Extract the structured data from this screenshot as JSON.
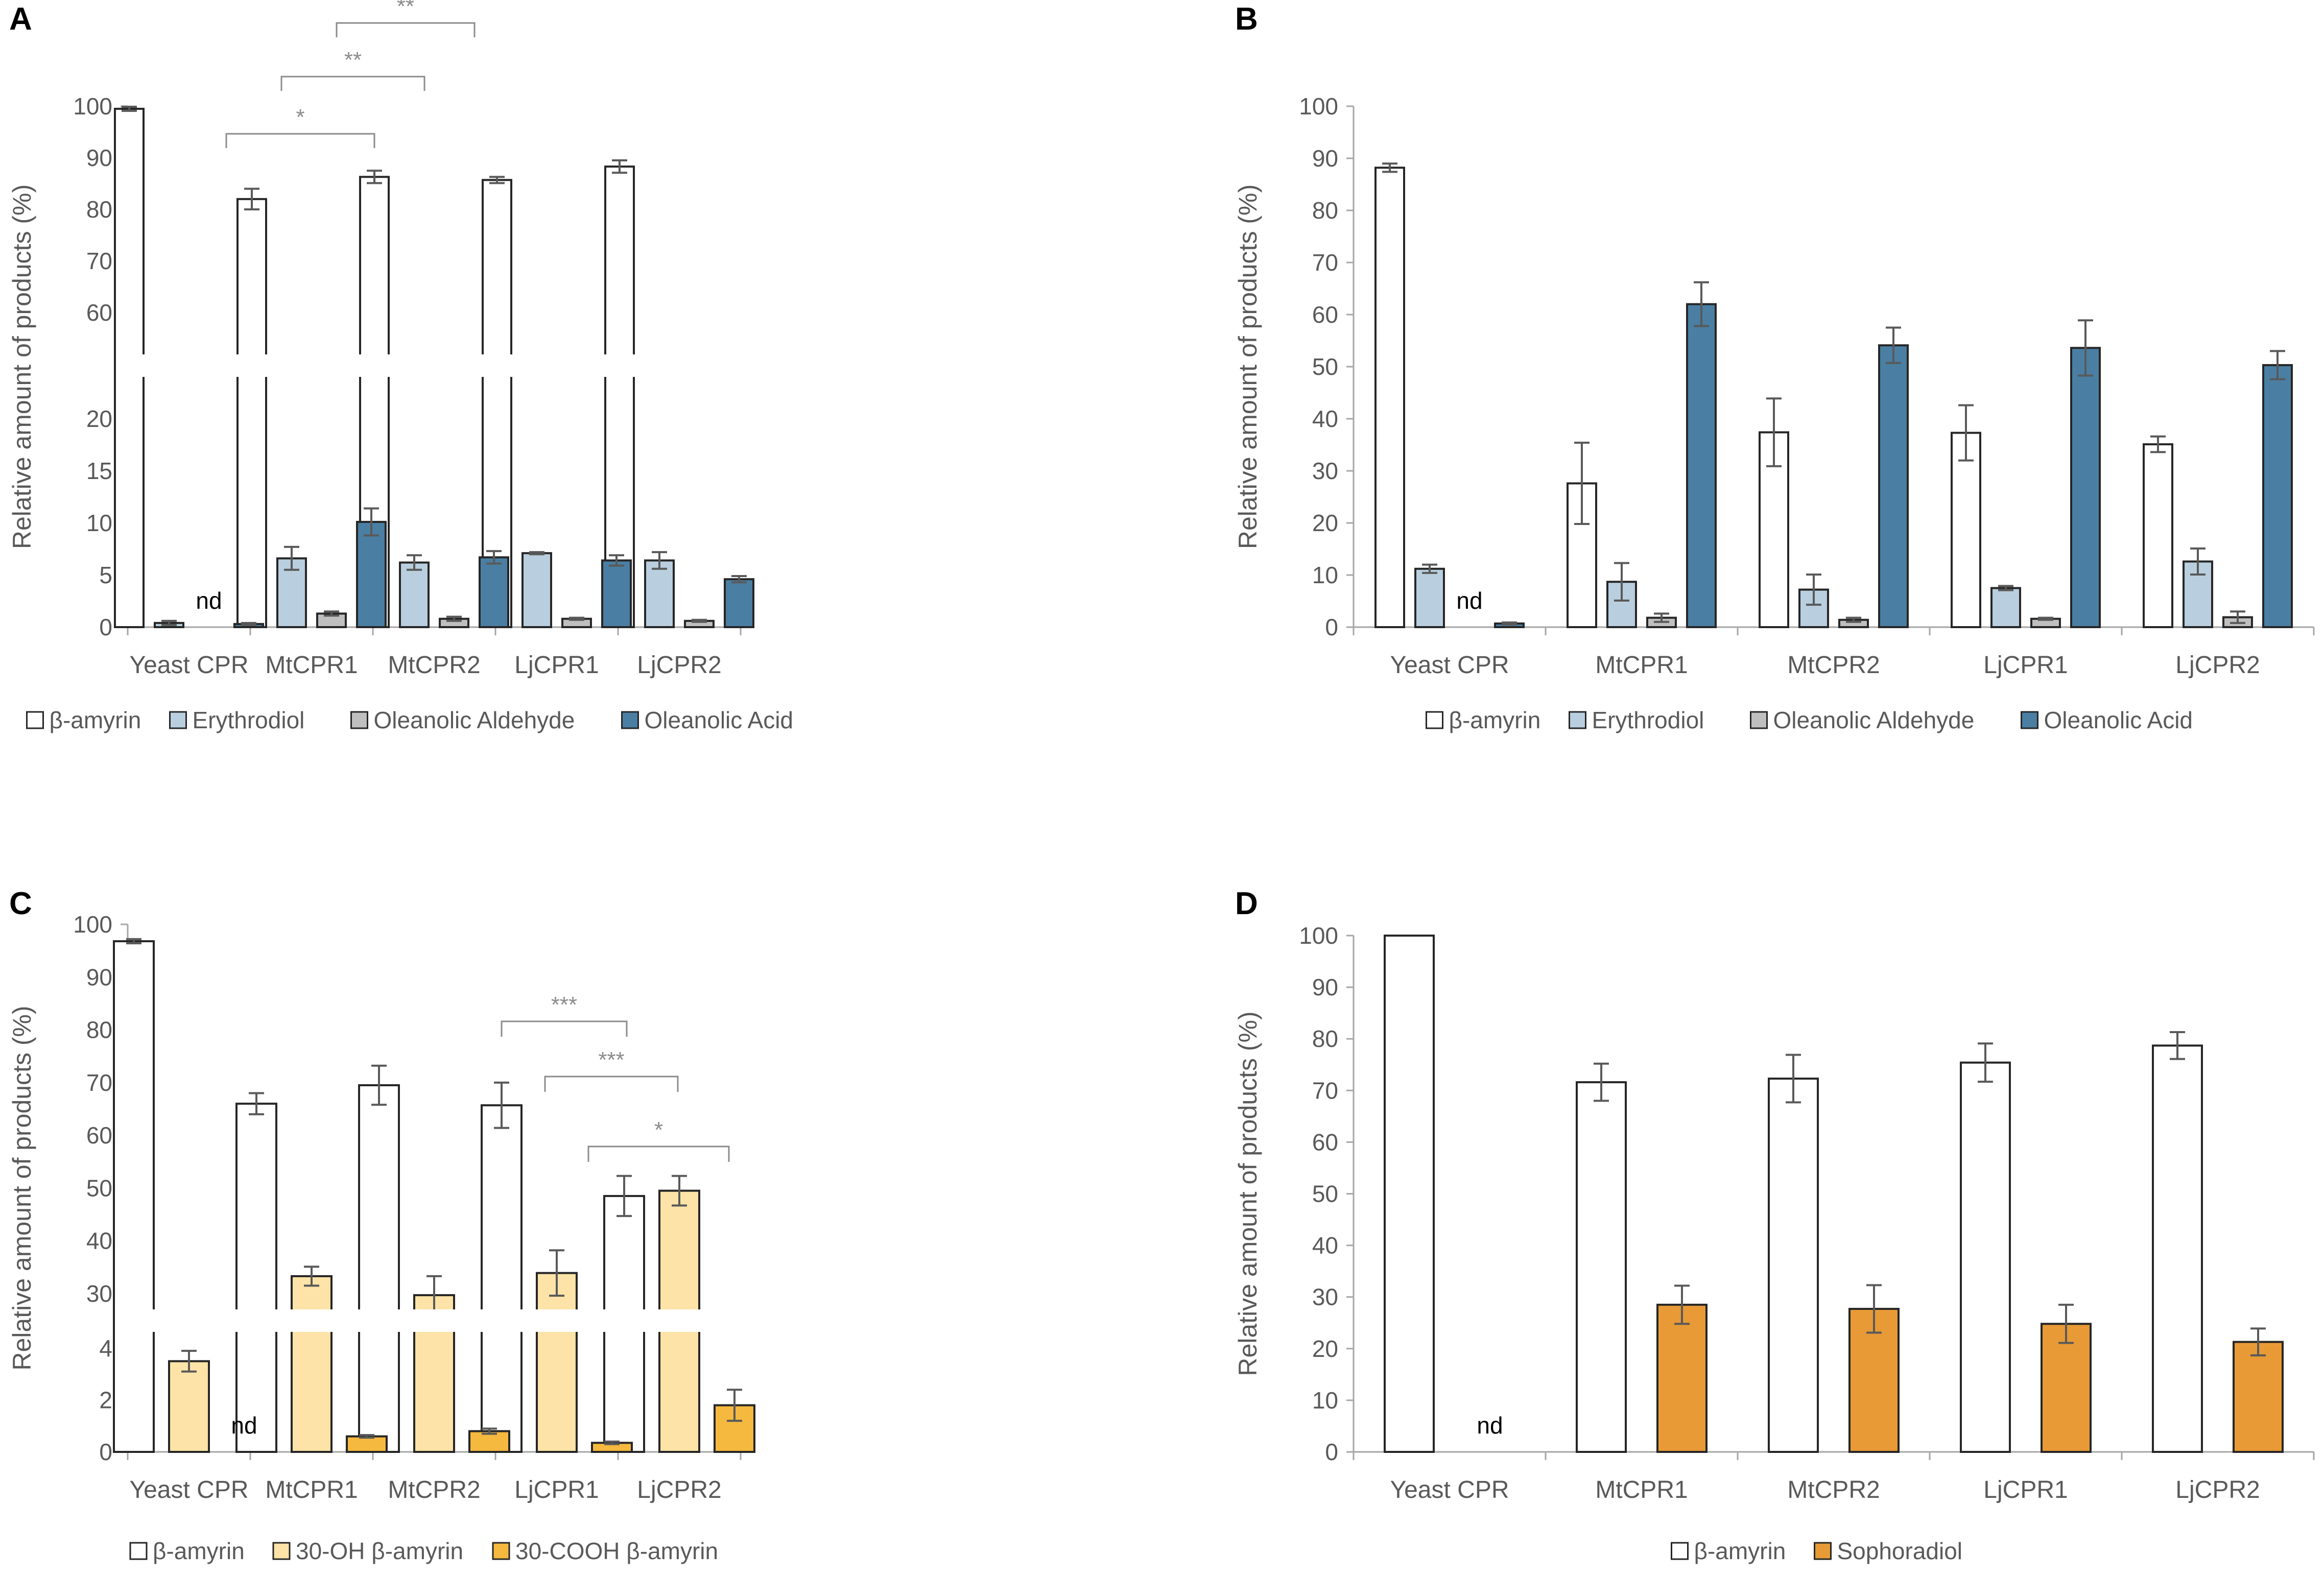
{
  "figure": {
    "colors": {
      "white": "#ffffff",
      "light_blue": "#b9cfdf",
      "gray": "#bfbfbf",
      "steel_blue": "#4a7fa3",
      "light_yellow": "#fde3a7",
      "gold": "#f5b93f",
      "orange": "#e89a36",
      "axis": "#a6a6a6",
      "text": "#595959",
      "border": "#262626"
    }
  },
  "chart_data": [
    {
      "panel": "A",
      "type": "bar",
      "ylabel": "Relative amount of products (%)",
      "categories": [
        "Yeast CPR",
        "MtCPR1",
        "MtCPR2",
        "LjCPR1",
        "LjCPR2"
      ],
      "axis_break": {
        "lower_max": 20,
        "upper_min": 60
      },
      "lower_ticks": [
        0,
        5,
        10,
        15,
        20
      ],
      "upper_ticks": [
        60,
        70,
        80,
        90,
        100
      ],
      "series": [
        {
          "name": "β-amyrin",
          "color_key": "white",
          "values": [
            99.5,
            82,
            86.3,
            85.7,
            88.3
          ],
          "errors": [
            0.4,
            2.0,
            1.2,
            0.6,
            1.2
          ]
        },
        {
          "name": "Erythrodiol",
          "color_key": "light_blue",
          "values": [
            0.4,
            6.6,
            6.2,
            7.1,
            6.4
          ],
          "errors": [
            0.2,
            1.1,
            0.7,
            0.1,
            0.8
          ]
        },
        {
          "name": "Oleanolic Aldehyde",
          "color_key": "gray",
          "values": [
            0,
            1.3,
            0.8,
            0.8,
            0.6
          ],
          "errors": [
            0,
            0.2,
            0.2,
            0.1,
            0.1
          ]
        },
        {
          "name": "Oleanolic Acid",
          "color_key": "steel_blue",
          "values": [
            0.3,
            10.1,
            6.7,
            6.4,
            4.6
          ],
          "errors": [
            0.1,
            1.3,
            0.6,
            0.5,
            0.3
          ]
        }
      ],
      "nd_label": "nd",
      "significance": [
        {
          "label": "*",
          "from_cat": 1,
          "to_cat": 2,
          "series": 0
        },
        {
          "label": "**",
          "from_cat": 1,
          "to_cat": 2,
          "series": 1
        },
        {
          "label": "**",
          "from_cat": 1,
          "to_cat": 2,
          "series": 2
        }
      ]
    },
    {
      "panel": "B",
      "type": "bar",
      "ylabel": "Relative amount of products (%)",
      "categories": [
        "Yeast CPR",
        "MtCPR1",
        "MtCPR2",
        "LjCPR1",
        "LjCPR2"
      ],
      "ylim": [
        0,
        100
      ],
      "ticks": [
        0,
        10,
        20,
        30,
        40,
        50,
        60,
        70,
        80,
        90,
        100
      ],
      "series": [
        {
          "name": "β-amyrin",
          "color_key": "white",
          "values": [
            88.2,
            27.6,
            37.4,
            37.3,
            35.1
          ],
          "errors": [
            0.8,
            7.8,
            6.5,
            5.3,
            1.5
          ]
        },
        {
          "name": "Erythrodiol",
          "color_key": "light_blue",
          "values": [
            11.2,
            8.7,
            7.2,
            7.5,
            12.6
          ],
          "errors": [
            0.8,
            3.6,
            2.9,
            0.4,
            2.5
          ]
        },
        {
          "name": "Oleanolic Aldehyde",
          "color_key": "gray",
          "values": [
            0,
            1.8,
            1.4,
            1.6,
            1.9
          ],
          "errors": [
            0,
            0.8,
            0.4,
            0.2,
            1.1
          ]
        },
        {
          "name": "Oleanolic Acid",
          "color_key": "steel_blue",
          "values": [
            0.7,
            62,
            54.1,
            53.6,
            50.3
          ],
          "errors": [
            0.2,
            4.2,
            3.4,
            5.3,
            2.7
          ]
        }
      ],
      "nd_label": "nd"
    },
    {
      "panel": "C",
      "type": "bar",
      "ylabel": "Relative amount of products (%)",
      "categories": [
        "Yeast CPR",
        "MtCPR1",
        "MtCPR2",
        "LjCPR1",
        "LjCPR2"
      ],
      "axis_break": {
        "lower_max": 4,
        "upper_min": 30
      },
      "lower_ticks": [
        0,
        2,
        4
      ],
      "upper_ticks": [
        30,
        40,
        50,
        60,
        70,
        80,
        90,
        100
      ],
      "series": [
        {
          "name": "β-amyrin",
          "color_key": "white",
          "values": [
            96.8,
            66,
            69.5,
            65.7,
            48.5
          ],
          "errors": [
            0.4,
            2.0,
            3.7,
            4.3,
            3.8
          ]
        },
        {
          "name": "30-OH β-amyrin",
          "color_key": "light_yellow",
          "values": [
            3.5,
            33.3,
            29.7,
            33.9,
            49.5
          ],
          "errors": [
            0.4,
            1.8,
            3.6,
            4.3,
            2.8
          ]
        },
        {
          "name": "30-COOH β-amyrin",
          "color_key": "gold",
          "values": [
            0,
            0.6,
            0.8,
            0.35,
            1.8
          ],
          "errors": [
            0,
            0.05,
            0.1,
            0.05,
            0.6
          ]
        }
      ],
      "nd_label": "nd",
      "significance": [
        {
          "label": "***",
          "from_cat": 3,
          "to_cat": 4,
          "series": 0
        },
        {
          "label": "***",
          "from_cat": 3,
          "to_cat": 4,
          "series": 1
        },
        {
          "label": "*",
          "from_cat": 3,
          "to_cat": 4,
          "series": 2
        }
      ]
    },
    {
      "panel": "D",
      "type": "bar",
      "ylabel": "Relative amount of products (%)",
      "categories": [
        "Yeast CPR",
        "MtCPR1",
        "MtCPR2",
        "LjCPR1",
        "LjCPR2"
      ],
      "ylim": [
        0,
        100
      ],
      "ticks": [
        0,
        10,
        20,
        30,
        40,
        50,
        60,
        70,
        80,
        90,
        100
      ],
      "series": [
        {
          "name": "β-amyrin",
          "color_key": "white",
          "values": [
            100,
            71.6,
            72.3,
            75.4,
            78.7
          ],
          "errors": [
            0,
            3.6,
            4.6,
            3.7,
            2.6
          ]
        },
        {
          "name": "Sophoradiol",
          "color_key": "orange",
          "values": [
            0,
            28.5,
            27.7,
            24.8,
            21.3
          ],
          "errors": [
            0,
            3.7,
            4.6,
            3.7,
            2.6
          ]
        }
      ],
      "nd_label": "nd"
    }
  ]
}
